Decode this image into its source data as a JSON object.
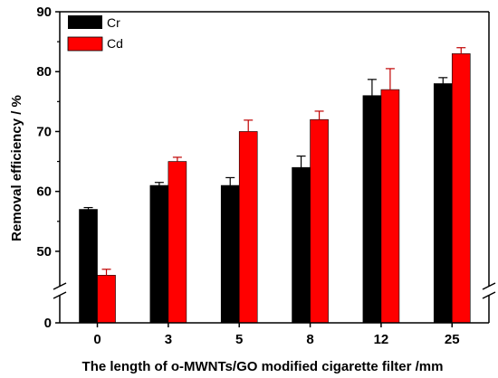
{
  "chart_data": {
    "type": "bar",
    "xlabel": "The length of o-MWNTs/GO modified cigarette filter /mm",
    "ylabel": "Removal efficiency / %",
    "categories": [
      "0",
      "3",
      "5",
      "8",
      "12",
      "25"
    ],
    "series": [
      {
        "name": "Cr",
        "color": "#000000",
        "values": [
          57,
          61,
          61,
          64,
          76,
          78
        ],
        "errors": [
          0.3,
          0.5,
          1.3,
          1.9,
          2.7,
          1.0
        ]
      },
      {
        "name": "Cd",
        "color": "#ff0000",
        "values": [
          46,
          65,
          70,
          72,
          77,
          83
        ],
        "errors": [
          1.0,
          0.7,
          1.9,
          1.4,
          3.5,
          1.0
        ]
      }
    ],
    "yaxis": {
      "broken": true,
      "break_below": 45,
      "ylim": [
        45,
        90
      ],
      "ticks": [
        50,
        60,
        70,
        80,
        90
      ],
      "bottom_tick": 0
    },
    "grid": false,
    "legend_position": "top-left"
  }
}
